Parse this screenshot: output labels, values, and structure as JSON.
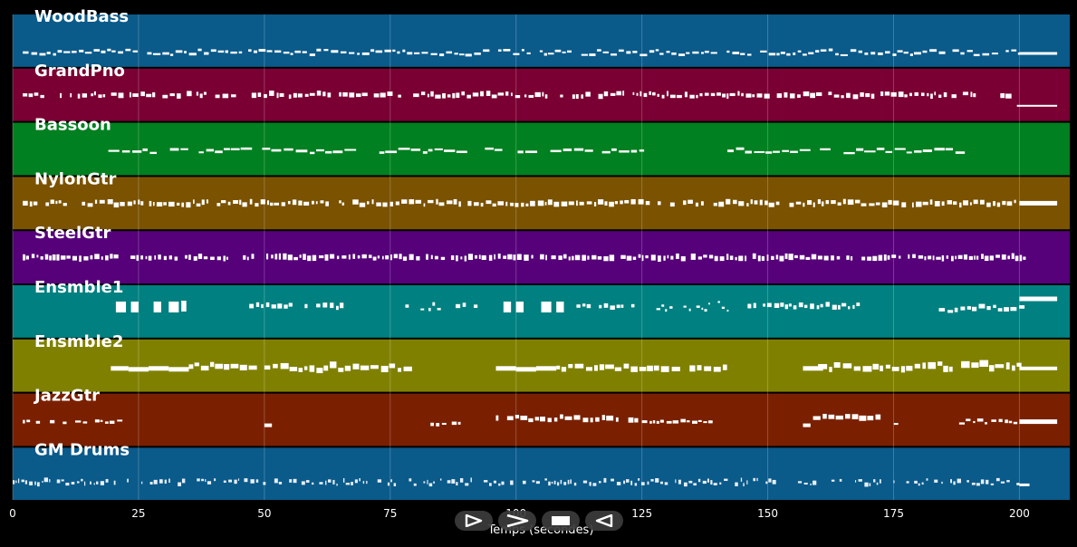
{
  "window": {
    "background": "#000000"
  },
  "tracks": [
    {
      "name": "WoodBass",
      "color": "#0a5a8a",
      "pattern": "bass"
    },
    {
      "name": "GrandPno",
      "color": "#7a0033",
      "pattern": "piano"
    },
    {
      "name": "Bassoon",
      "color": "#008020",
      "pattern": "bassoon"
    },
    {
      "name": "NylonGtr",
      "color": "#7a5200",
      "pattern": "guitar"
    },
    {
      "name": "SteelGtr",
      "color": "#56007a",
      "pattern": "steel"
    },
    {
      "name": "Ensmble1",
      "color": "#008080",
      "pattern": "ens1"
    },
    {
      "name": "Ensmble2",
      "color": "#808000",
      "pattern": "ens2"
    },
    {
      "name": "JazzGtr",
      "color": "#7a2000",
      "pattern": "jazz"
    },
    {
      "name": "GM Drums",
      "color": "#0a5a8a",
      "pattern": "drums"
    }
  ],
  "axis": {
    "xmin": 0,
    "xmax": 210,
    "ticks": [
      0,
      25,
      50,
      75,
      100,
      125,
      150,
      175,
      200
    ],
    "xlabel": "Temps (secondes)"
  },
  "transport": [
    {
      "name": "play-button",
      "icon": "play-icon"
    },
    {
      "name": "fast-forward-button",
      "icon": "fast-forward-icon"
    },
    {
      "name": "stop-button",
      "icon": "stop-icon"
    },
    {
      "name": "rewind-button",
      "icon": "rewind-icon"
    }
  ]
}
